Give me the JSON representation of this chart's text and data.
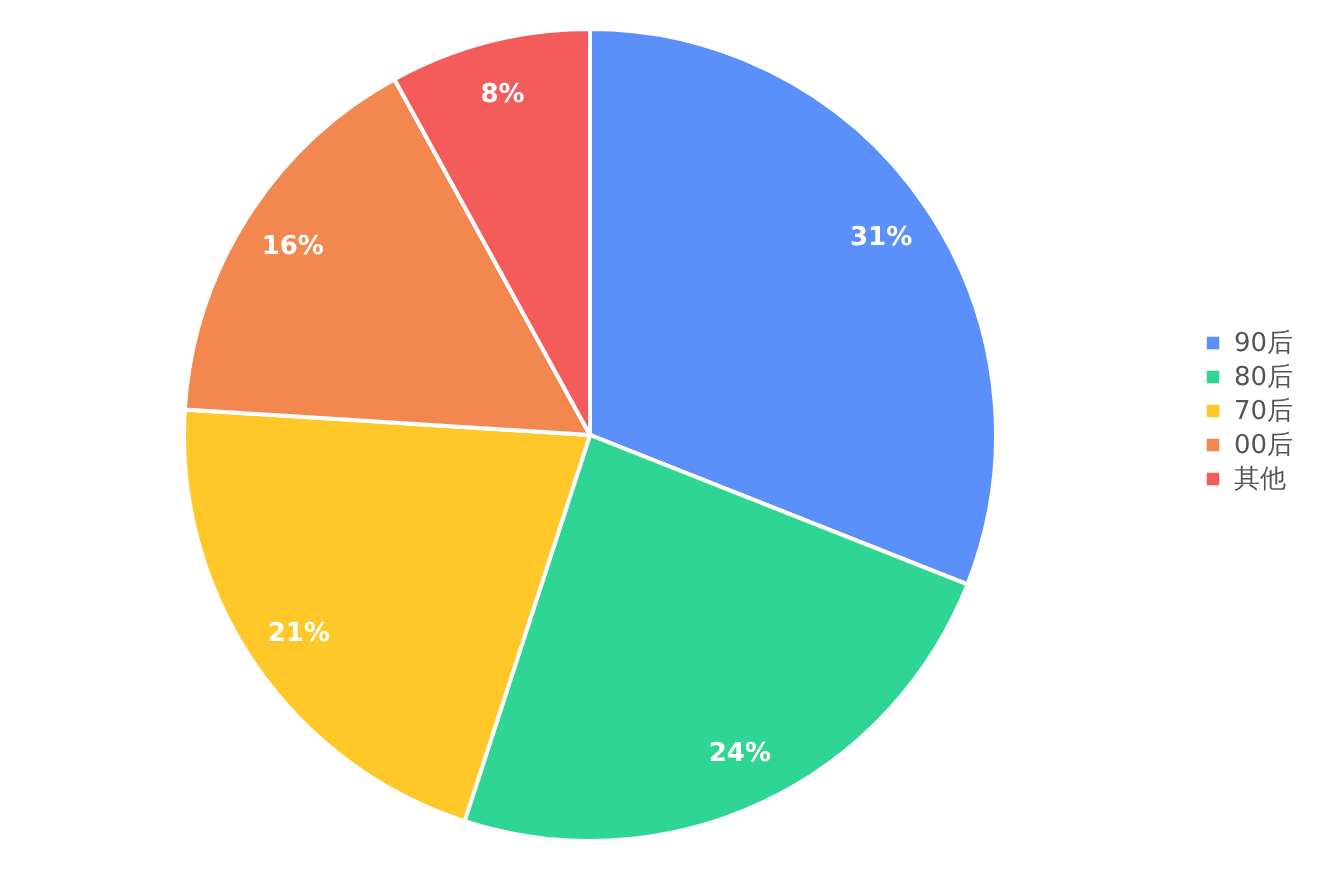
{
  "chart_data": {
    "type": "pie",
    "categories": [
      "90后",
      "80后",
      "70后",
      "00后",
      "其他"
    ],
    "values": [
      31,
      24,
      21,
      16,
      8
    ],
    "colors": [
      "#5b8ff9",
      "#2fd595",
      "#ffc728",
      "#f2884f",
      "#f45b5b"
    ],
    "value_labels": [
      "31%",
      "24%",
      "21%",
      "16%",
      "8%"
    ],
    "legend": "right"
  }
}
